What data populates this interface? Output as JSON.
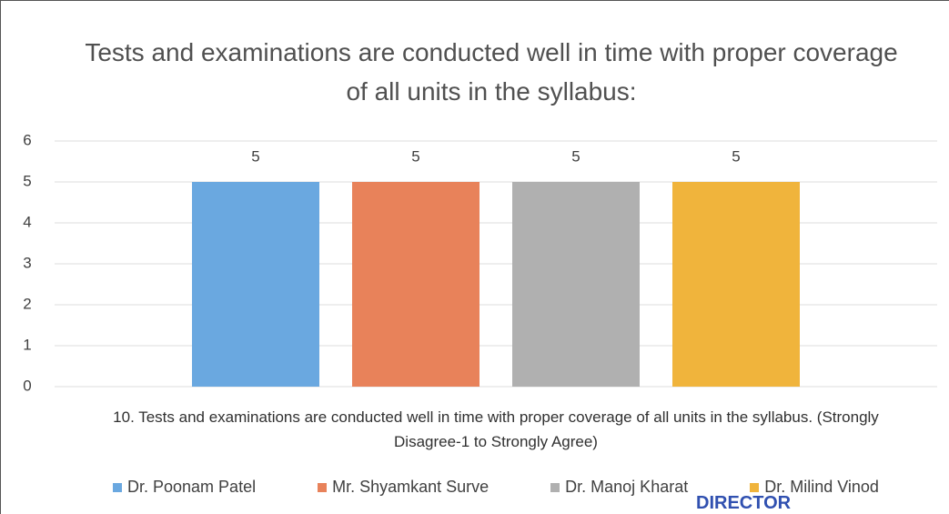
{
  "chart_data": {
    "type": "bar",
    "title": "Tests and examinations are conducted well in time with proper coverage of all units in the syllabus:",
    "x_label": "10. Tests and examinations are conducted well in time with proper coverage of all units in the syllabus. (Strongly Disagree-1 to Strongly Agree)",
    "categories": [
      null
    ],
    "series": [
      {
        "name": "Dr. Poonam Patel",
        "color": "#6aa8e0",
        "values": [
          5
        ]
      },
      {
        "name": "Mr. Shyamkant Surve",
        "color": "#e8825a",
        "values": [
          5
        ]
      },
      {
        "name": "Dr. Manoj Kharat",
        "color": "#b0b0b0",
        "values": [
          5
        ]
      },
      {
        "name": "Dr. Milind Vinod",
        "color": "#f0b43c",
        "values": [
          5
        ]
      }
    ],
    "ylim": [
      0,
      6
    ],
    "yticks": [
      0,
      1,
      2,
      3,
      4,
      5,
      6
    ],
    "grid": true,
    "legend": "bottom",
    "annotations": [
      "DIRECTOR"
    ]
  }
}
